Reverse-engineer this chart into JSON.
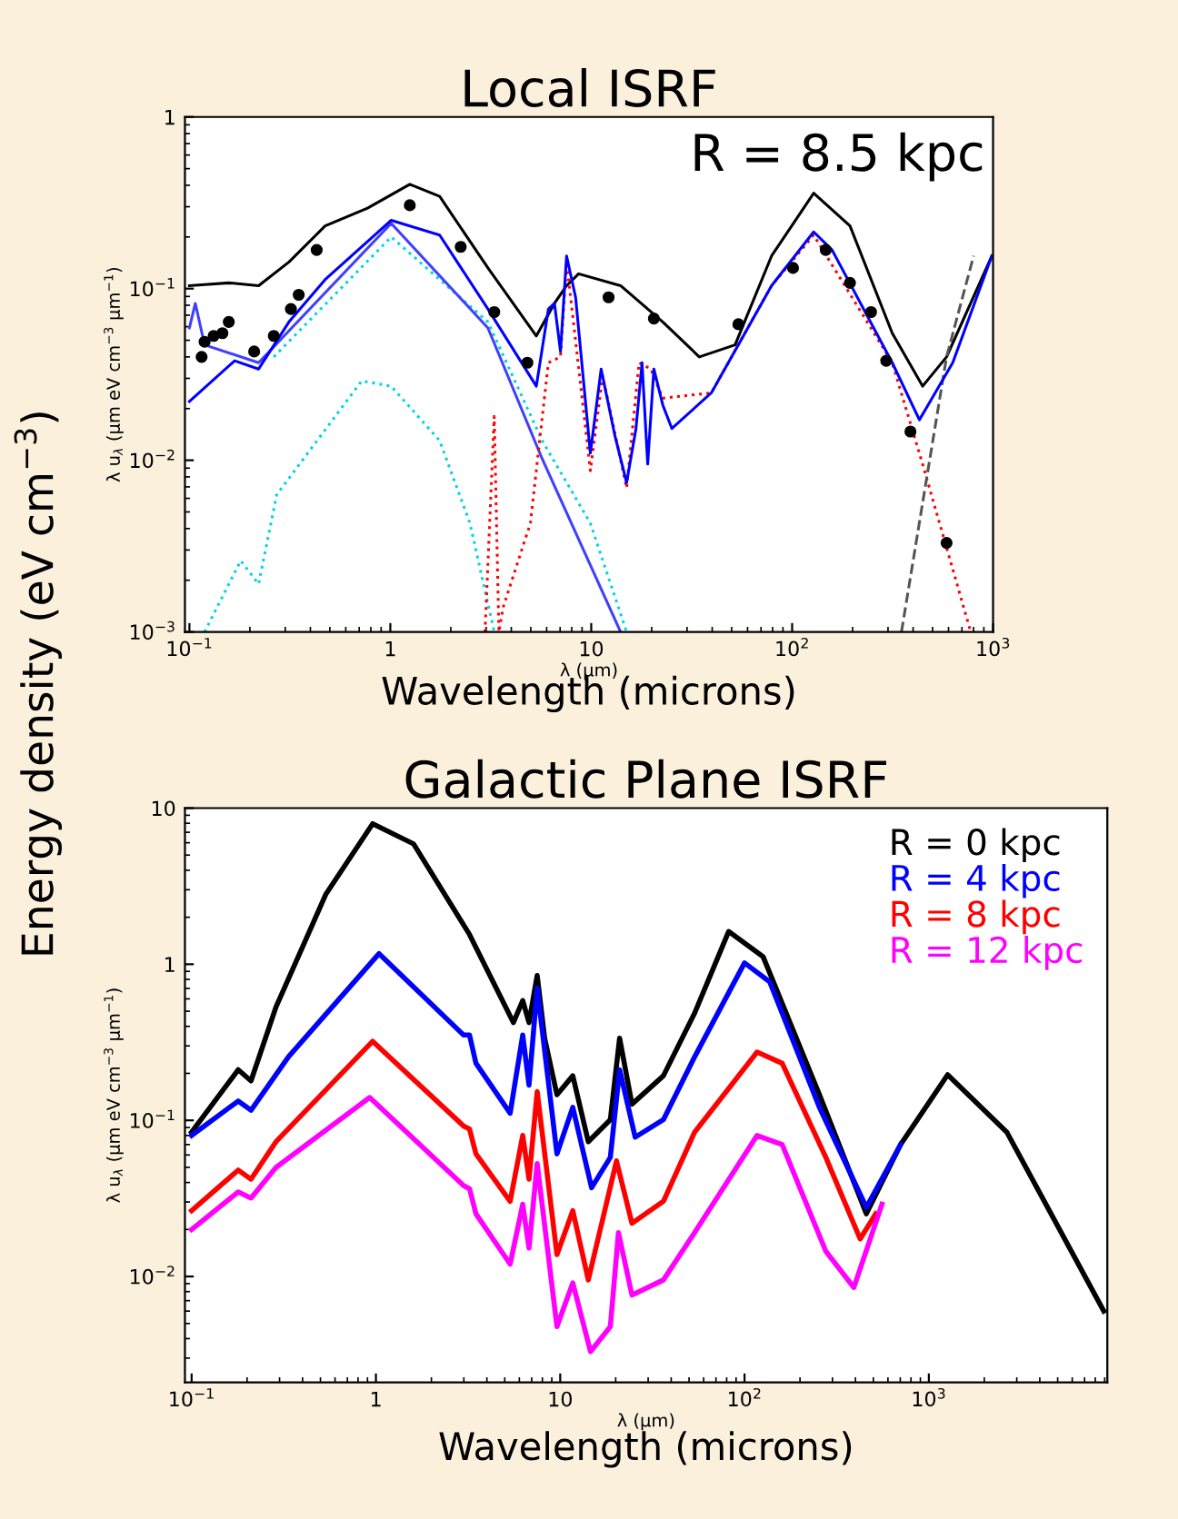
{
  "chart_data": [
    {
      "type": "line",
      "title": "Local ISRF",
      "xlabel": "λ (μm)",
      "ylabel": "λ u$_{λ}$ (μm eV cm$^{−3}$ μm$^{−1}$)",
      "log": "xy",
      "grid": false,
      "legend": false,
      "xlim": [
        0.095,
        1000
      ],
      "ylim": [
        0.001,
        1
      ],
      "xticks": [
        {
          "value": 0.1,
          "label": "10$^{−1}$"
        },
        1,
        10,
        {
          "value": 100,
          "label": "10$^{2}$"
        },
        {
          "value": 1000,
          "label": "10$^{3}$"
        }
      ],
      "yticks": [
        {
          "value": 0.001,
          "label": "10$^{−3}$"
        },
        {
          "value": 0.01,
          "label": "10$^{−2}$"
        },
        {
          "value": 0.1,
          "label": "10$^{−1}$"
        },
        1
      ],
      "annotations": [
        "R = 8.5 kpc",
        "Wavelength (microns)",
        "Energy density (eV cm$^{−3}$)"
      ],
      "series": [
        {
          "color": "#000000",
          "line_style": "solid",
          "x": [
            0.1,
            0.157,
            0.221,
            0.313,
            0.474,
            0.77,
            1.25,
            1.76,
            3.06,
            5.33,
            6.56,
            7.54,
            8.65,
            14.0,
            22.7,
            34.5,
            52,
            79,
            128,
            194,
            315,
            446,
            587,
            986
          ],
          "values": [
            0.104,
            0.108,
            0.104,
            0.143,
            0.232,
            0.294,
            0.405,
            0.345,
            0.132,
            0.053,
            0.082,
            0.104,
            0.122,
            0.104,
            0.064,
            0.04,
            0.047,
            0.155,
            0.36,
            0.232,
            0.055,
            0.027,
            0.04,
            0.155
          ]
        },
        {
          "color": "#00d5e5",
          "line_style": "dotted",
          "x": [
            0.263,
            1.01,
            3.06,
            5.7,
            9.9,
            15.0
          ],
          "values": [
            0.04,
            0.2,
            0.064,
            0.013,
            0.0043,
            0.001
          ]
        },
        {
          "color": "#00d5e5",
          "line_style": "dotted",
          "x": [
            0.119,
            0.18,
            0.221,
            0.272,
            0.72,
            1.01,
            1.76,
            2.49,
            3.29
          ],
          "values": [
            0.001,
            0.0026,
            0.0019,
            0.0063,
            0.029,
            0.027,
            0.013,
            0.0043,
            0.001
          ]
        },
        {
          "color": "#4040ff",
          "line_style": "solid",
          "x": [
            0.1,
            0.107,
            0.119,
            0.221,
            1.01,
            3.06,
            5.7,
            14.0
          ],
          "values": [
            0.059,
            0.082,
            0.047,
            0.037,
            0.24,
            0.059,
            0.0102,
            0.001
          ]
        },
        {
          "color": "#ff0000",
          "line_style": "dotted",
          "x": [
            2.96,
            3.29,
            3.47,
            3.65,
            4.98,
            6.12,
            7.03,
            7.54,
            9.9,
            11.4,
            15.0,
            17.3,
            19.8,
            22.7,
            39.6,
            79,
            128,
            315,
            446,
            774
          ],
          "values": [
            0.001,
            0.018,
            0.001,
            0.0014,
            0.0043,
            0.037,
            0.04,
            0.143,
            0.0087,
            0.031,
            0.0069,
            0.037,
            0.034,
            0.023,
            0.0247,
            0.104,
            0.205,
            0.037,
            0.0095,
            0.001
          ]
        },
        {
          "color": "#555555",
          "line_style": "dashed",
          "x": [
            350,
            587,
            800
          ],
          "values": [
            0.001,
            0.04,
            0.155
          ]
        },
        {
          "color": "#0000ff",
          "line_style": "solid",
          "x": [
            0.1,
            0.168,
            0.221,
            0.313,
            0.474,
            1.01,
            1.76,
            3.06,
            5.33,
            6.12,
            6.56,
            7.03,
            7.54,
            8.36,
            9.9,
            11.2,
            13.1,
            15.0,
            16.7,
            17.9,
            19.1,
            20.5,
            22.7,
            25.2,
            39.6,
            79,
            128,
            158,
            315,
            430,
            630,
            986
          ],
          "values": [
            0.022,
            0.038,
            0.034,
            0.064,
            0.113,
            0.25,
            0.205,
            0.076,
            0.027,
            0.076,
            0.082,
            0.043,
            0.155,
            0.089,
            0.011,
            0.034,
            0.014,
            0.0074,
            0.0153,
            0.037,
            0.0095,
            0.034,
            0.021,
            0.0153,
            0.0247,
            0.104,
            0.214,
            0.168,
            0.037,
            0.0172,
            0.037,
            0.155
          ]
        },
        {
          "type": "scatter",
          "color": "#000000",
          "marker": "circle",
          "x": [
            0.115,
            0.119,
            0.132,
            0.146,
            0.157,
            0.21,
            0.263,
            0.32,
            0.35,
            0.43,
            1.25,
            2.24,
            3.29,
            4.81,
            12.2,
            20.5,
            54,
            101,
            147,
            194,
            247,
            294,
            388,
            587
          ],
          "values": [
            0.04,
            0.049,
            0.053,
            0.055,
            0.064,
            0.043,
            0.053,
            0.076,
            0.092,
            0.168,
            0.306,
            0.175,
            0.073,
            0.037,
            0.089,
            0.067,
            0.062,
            0.132,
            0.168,
            0.108,
            0.073,
            0.038,
            0.0147,
            0.0033
          ]
        }
      ]
    },
    {
      "type": "line",
      "title": "Galactic Plane ISRF",
      "xlabel": "λ (μm)",
      "ylabel": "λ u$_{λ}$ (μm eV cm$^{−3}$ μm$^{−1}$)",
      "log": "xy",
      "grid": false,
      "legend": "top right",
      "xlim": [
        0.092,
        9300
      ],
      "ylim": [
        0.0021,
        10
      ],
      "xticks": [
        {
          "value": 0.1,
          "label": "10$^{−1}$"
        },
        1,
        10,
        {
          "value": 100,
          "label": "10$^{2}$"
        },
        {
          "value": 1000,
          "label": "10$^{3}$"
        }
      ],
      "yticks": [
        {
          "value": 0.01,
          "label": "10$^{−2}$"
        },
        {
          "value": 0.1,
          "label": "10$^{−1}$"
        },
        1,
        10
      ],
      "annotations": [
        "Wavelength (microns)"
      ],
      "series": [
        {
          "name": "R = 0 kpc",
          "color": "#000000",
          "line_style": "solid",
          "x": [
            0.1,
            0.179,
            0.21,
            0.287,
            0.536,
            0.96,
            1.6,
            3.22,
            5.57,
            6.26,
            6.77,
            7.5,
            8.23,
            9.6,
            11.7,
            14.2,
            18.7,
            21.0,
            24.5,
            36.3,
            53.6,
            82,
            126,
            255,
            458,
            703,
            1265,
            2650,
            8900
          ],
          "values": [
            0.084,
            0.211,
            0.179,
            0.533,
            2.82,
            7.94,
            5.9,
            1.55,
            0.423,
            0.585,
            0.423,
            0.847,
            0.336,
            0.146,
            0.193,
            0.073,
            0.101,
            0.336,
            0.127,
            0.193,
            0.486,
            1.62,
            1.12,
            0.146,
            0.0252,
            0.07,
            0.196,
            0.084,
            0.006
          ]
        },
        {
          "name": "R = 4 kpc",
          "color": "#0000ff",
          "line_style": "solid",
          "x": [
            0.1,
            0.179,
            0.21,
            0.335,
            1.04,
            2.99,
            3.22,
            3.49,
            5.35,
            6.26,
            6.77,
            7.5,
            9.6,
            11.7,
            14.8,
            18.7,
            21.0,
            25.5,
            36.3,
            53.6,
            100,
            137,
            255,
            458,
            703
          ],
          "values": [
            0.08,
            0.133,
            0.116,
            0.255,
            1.17,
            0.352,
            0.352,
            0.232,
            0.111,
            0.352,
            0.168,
            0.704,
            0.061,
            0.121,
            0.037,
            0.058,
            0.211,
            0.078,
            0.101,
            0.255,
            1.02,
            0.772,
            0.121,
            0.0277,
            0.07
          ]
        },
        {
          "name": "R = 8 kpc",
          "color": "#ff0000",
          "line_style": "solid",
          "x": [
            0.1,
            0.179,
            0.21,
            0.287,
            0.96,
            2.99,
            3.22,
            3.49,
            5.35,
            6.26,
            6.77,
            7.5,
            9.6,
            11.7,
            14.2,
            20.2,
            24.5,
            36.3,
            53.6,
            117,
            160,
            276,
            424,
            515
          ],
          "values": [
            0.0264,
            0.048,
            0.042,
            0.073,
            0.321,
            0.092,
            0.088,
            0.061,
            0.0303,
            0.08,
            0.042,
            0.153,
            0.0138,
            0.0264,
            0.0095,
            0.055,
            0.0219,
            0.0303,
            0.084,
            0.274,
            0.232,
            0.058,
            0.0174,
            0.0252
          ]
        },
        {
          "name": "R = 12 kpc",
          "color": "#ff00ff",
          "line_style": "solid",
          "x": [
            0.1,
            0.179,
            0.21,
            0.287,
            0.925,
            2.99,
            3.22,
            3.49,
            5.35,
            6.26,
            6.77,
            7.5,
            9.6,
            11.7,
            14.6,
            18.7,
            20.7,
            24.5,
            36.3,
            53.6,
            117,
            160,
            276,
            392,
            557
          ],
          "values": [
            0.02,
            0.0348,
            0.0318,
            0.05,
            0.14,
            0.0382,
            0.0365,
            0.0252,
            0.012,
            0.029,
            0.0152,
            0.0528,
            0.00477,
            0.0091,
            0.0033,
            0.00477,
            0.0191,
            0.0076,
            0.0095,
            0.0191,
            0.08,
            0.07,
            0.0145,
            0.0085,
            0.029
          ]
        }
      ]
    }
  ]
}
